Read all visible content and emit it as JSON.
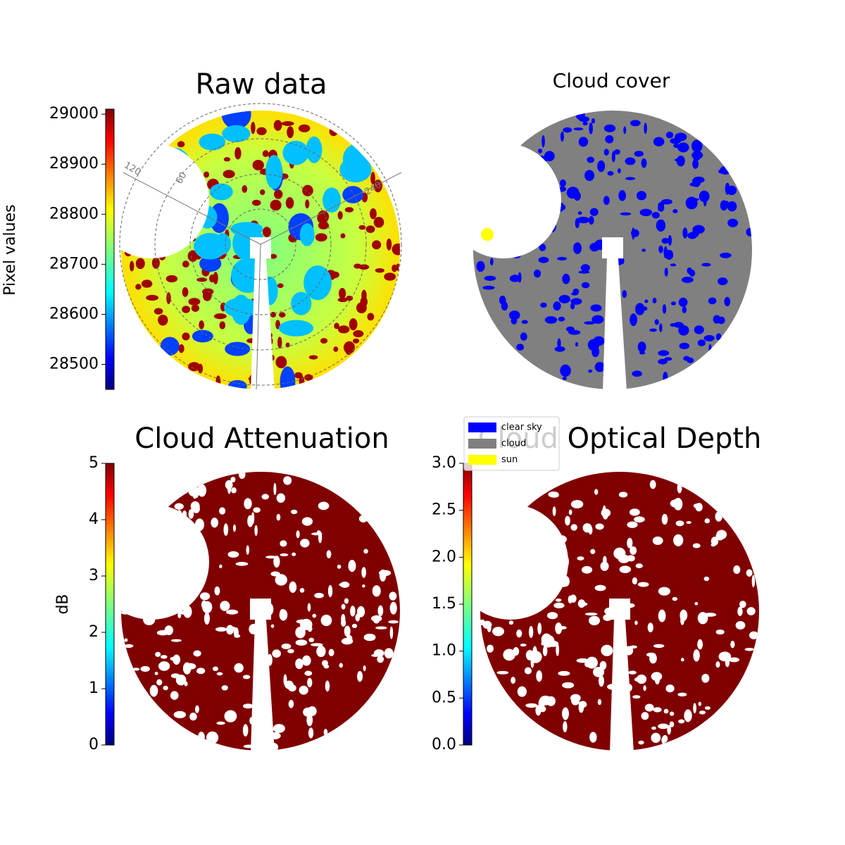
{
  "chart_data": [
    {
      "type": "image",
      "title": "Raw data",
      "colormap": "jet",
      "label": "Pixel values",
      "ylim": [
        28450,
        29010
      ],
      "yticks": [
        28500,
        28600,
        28700,
        28800,
        28900,
        29000
      ],
      "annotations": [
        "120",
        "60",
        "240"
      ]
    },
    {
      "type": "image",
      "title": "Cloud cover",
      "series": [
        {
          "name": "clear sky",
          "color": "#0000ff"
        },
        {
          "name": "cloud",
          "color": "#808080"
        },
        {
          "name": "sun",
          "color": "#ffff00"
        }
      ]
    },
    {
      "type": "image",
      "title": "Cloud Attenuation",
      "colormap": "jet",
      "label": "dB",
      "ylim": [
        0,
        5
      ],
      "yticks": [
        0,
        1,
        2,
        3,
        4,
        5
      ]
    },
    {
      "type": "image",
      "title": "Cloud Optical Depth",
      "colormap": "jet",
      "ylim": [
        0,
        3
      ],
      "yticks": [
        {
          "value": 0,
          "label": "0.0"
        },
        0.5,
        {
          "value": 1,
          "label": "1.0"
        },
        1.5,
        {
          "value": 2,
          "label": "2.0"
        },
        2.5,
        {
          "value": 3,
          "label": "3.0"
        }
      ]
    }
  ]
}
